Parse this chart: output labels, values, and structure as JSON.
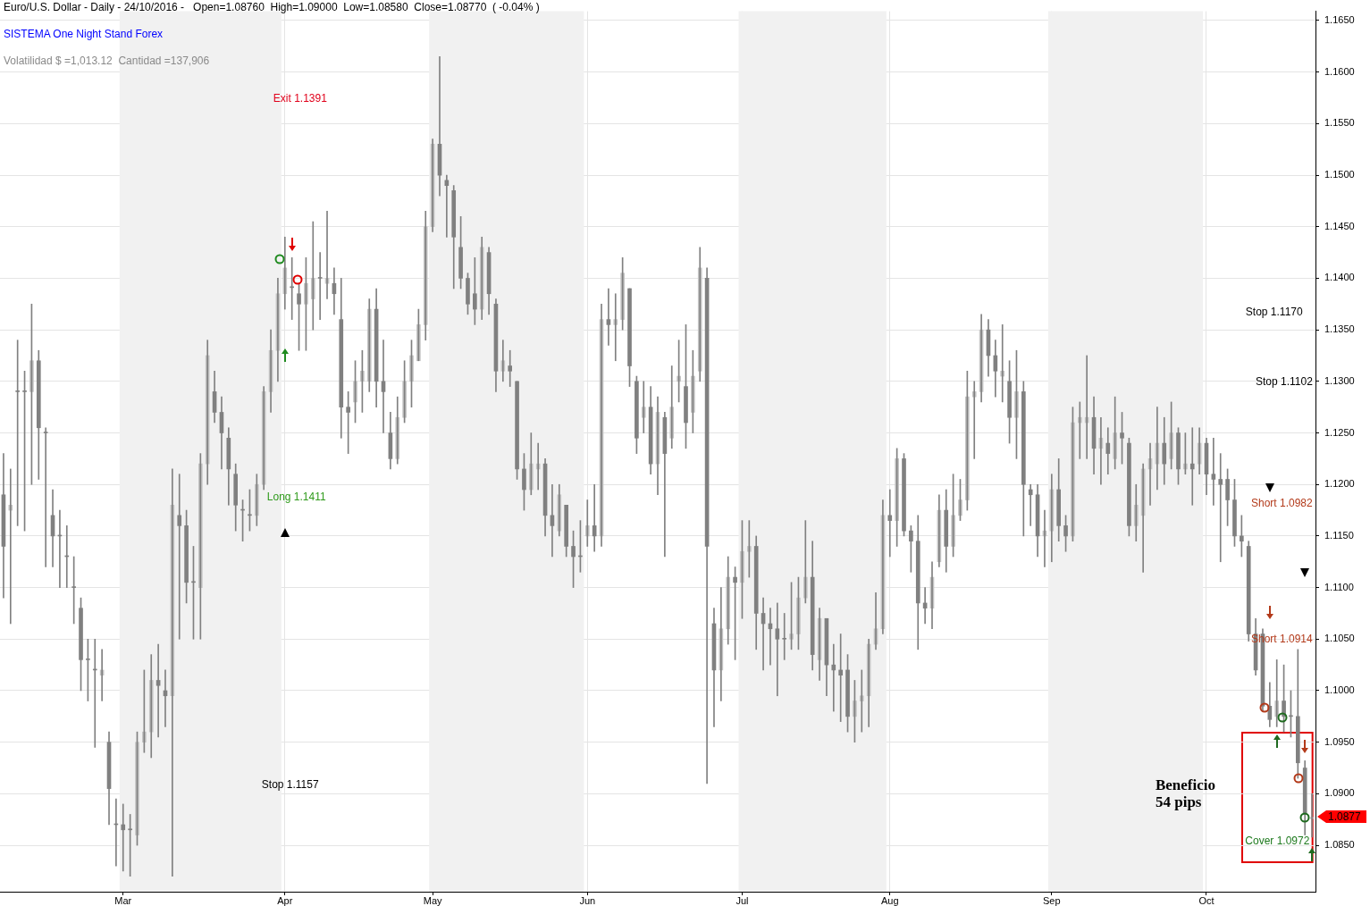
{
  "chart_data": {
    "type": "candlestick",
    "title": "Euro/U.S. Dollar - Daily - 24/10/2016 -   Open=1.08760  High=1.09000  Low=1.08580  Close=1.08770  ( -0.04% )",
    "subtitle": "SISTEMA One Night Stand Forex",
    "categories": [
      null,
      null,
      null,
      null,
      null,
      null,
      null,
      null,
      null,
      null,
      null,
      null,
      null,
      null,
      null,
      null,
      null,
      "Mar",
      null,
      null,
      null,
      null,
      null,
      null,
      null,
      null,
      null,
      null,
      null,
      null,
      null,
      null,
      null,
      null,
      null,
      null,
      null,
      null,
      null,
      null,
      "Apr",
      null,
      null,
      null,
      null,
      null,
      null,
      null,
      null,
      null,
      null,
      null,
      null,
      null,
      null,
      null,
      null,
      null,
      null,
      null,
      null,
      "May",
      null,
      null,
      null,
      null,
      null,
      null,
      null,
      null,
      null,
      null,
      null,
      null,
      null,
      null,
      null,
      null,
      null,
      null,
      null,
      null,
      null,
      "Jun",
      null,
      null,
      null,
      null,
      null,
      null,
      null,
      null,
      null,
      null,
      null,
      null,
      null,
      null,
      null,
      null,
      null,
      null,
      null,
      null,
      null,
      "Jul",
      null,
      null,
      null,
      null,
      null,
      null,
      null,
      null,
      null,
      null,
      null,
      null,
      null,
      null,
      null,
      null,
      null,
      null,
      null,
      null,
      "Aug",
      null,
      null,
      null,
      null,
      null,
      null,
      null,
      null,
      null,
      null,
      null,
      null,
      null,
      null,
      null,
      null,
      null,
      null,
      null,
      null,
      null,
      null,
      "Sep",
      null,
      null,
      null,
      null,
      null,
      null,
      null,
      null,
      null,
      null,
      null,
      null,
      null,
      null,
      null,
      null,
      null,
      null,
      null,
      null,
      null,
      "Oct",
      null,
      null,
      null,
      null,
      null,
      null,
      null,
      null,
      null,
      null,
      null,
      null,
      null,
      null,
      null
    ],
    "color": "#808080",
    "colors": [
      "#808080",
      "#c4c4c4",
      "#808080",
      "#808080",
      "#c4c4c4",
      "#808080",
      "#808080",
      "#808080",
      "#808080",
      "#808080",
      "#808080",
      "#808080",
      "#808080",
      "#808080",
      "#c4c4c4",
      "#808080",
      "#808080",
      "#808080",
      "#808080",
      "#c4c4c4",
      "#c4c4c4",
      "#c4c4c4",
      "#808080",
      "#808080",
      "#c4c4c4",
      "#808080",
      "#808080",
      "#808080",
      "#c4c4c4",
      "#c4c4c4",
      "#808080",
      "#808080",
      "#808080",
      "#808080",
      "#808080",
      "#808080",
      "#c4c4c4",
      "#c4c4c4",
      "#c4c4c4",
      "#c4c4c4",
      "#c4c4c4",
      "#808080",
      "#808080",
      "#c4c4c4",
      "#c4c4c4",
      "#808080",
      "#c4c4c4",
      "#808080",
      "#808080",
      "#808080",
      "#c4c4c4",
      "#c4c4c4",
      "#c4c4c4",
      "#808080",
      "#808080",
      "#808080",
      "#c4c4c4",
      "#c4c4c4",
      "#c4c4c4",
      "#c4c4c4",
      "#c4c4c4",
      "#c4c4c4",
      "#808080",
      "#808080",
      "#808080",
      "#808080",
      "#808080",
      "#808080",
      "#c4c4c4",
      "#808080",
      "#808080",
      "#c4c4c4",
      "#808080",
      "#808080",
      "#808080",
      "#c4c4c4",
      "#c4c4c4",
      "#808080",
      "#808080",
      "#c4c4c4",
      "#808080",
      "#808080",
      "#808080",
      "#c4c4c4",
      "#808080",
      "#c4c4c4",
      "#808080",
      "#c4c4c4",
      "#c4c4c4",
      "#808080",
      "#808080",
      "#c4c4c4",
      "#808080",
      "#c4c4c4",
      "#808080",
      "#c4c4c4",
      "#c4c4c4",
      "#808080",
      "#c4c4c4",
      "#c4c4c4",
      "#808080",
      "#808080",
      "#c4c4c4",
      "#c4c4c4",
      "#808080",
      "#c4c4c4",
      "#c4c4c4",
      "#808080",
      "#808080",
      "#808080",
      "#808080",
      "#808080",
      "#c4c4c4",
      "#c4c4c4",
      "#c4c4c4",
      "#808080",
      "#c4c4c4",
      "#808080",
      "#808080",
      "#808080",
      "#808080",
      "#c4c4c4",
      "#c4c4c4",
      "#c4c4c4",
      "#c4c4c4",
      "#c4c4c4",
      "#808080",
      "#c4c4c4",
      "#808080",
      "#808080",
      "#808080",
      "#808080",
      "#c4c4c4",
      "#c4c4c4",
      "#808080",
      "#c4c4c4",
      "#c4c4c4",
      "#c4c4c4",
      "#c4c4c4",
      "#c4c4c4",
      "#808080",
      "#808080",
      "#c4c4c4",
      "#808080",
      "#c4c4c4",
      "#808080",
      "#808080",
      "#808080",
      "#c4c4c4",
      "#c4c4c4",
      "#808080",
      "#808080",
      "#c4c4c4",
      "#c4c4c4",
      "#c4c4c4",
      "#808080",
      "#c4c4c4",
      "#808080",
      "#c4c4c4",
      "#808080",
      "#808080",
      "#c4c4c4",
      "#c4c4c4",
      "#c4c4c4",
      "#c4c4c4",
      "#808080",
      "#c4c4c4",
      "#808080",
      "#c4c4c4",
      "#808080",
      "#c4c4c4",
      "#808080",
      "#808080",
      "#808080",
      "#808080",
      "#808080",
      "#808080",
      "#808080",
      "#808080",
      "#808080",
      "#808080",
      "#c4c4c4",
      "#808080",
      "#808080",
      "#808080",
      "#808080",
      "#c4c4c4"
    ],
    "ohlc": [
      [
        1.119,
        1.123,
        1.109,
        1.114
      ],
      [
        1.1175,
        1.1215,
        1.1065,
        1.118
      ],
      [
        1.129,
        1.134,
        1.116,
        1.129
      ],
      [
        1.129,
        1.131,
        1.1155,
        1.129
      ],
      [
        1.129,
        1.1375,
        1.12,
        1.132
      ],
      [
        1.132,
        1.133,
        1.1205,
        1.1255
      ],
      [
        1.125,
        1.1255,
        1.112,
        1.125
      ],
      [
        1.117,
        1.1195,
        1.112,
        1.115
      ],
      [
        1.115,
        1.1175,
        1.11,
        1.115
      ],
      [
        1.113,
        1.116,
        1.11,
        1.113
      ],
      [
        1.11,
        1.113,
        1.1065,
        1.11
      ],
      [
        1.108,
        1.109,
        1.1,
        1.103
      ],
      [
        1.103,
        1.105,
        1.099,
        1.103
      ],
      [
        1.102,
        1.105,
        1.0945,
        1.102
      ],
      [
        1.1015,
        1.104,
        1.099,
        1.102
      ],
      [
        1.095,
        1.096,
        1.087,
        1.0905
      ],
      [
        1.087,
        1.0895,
        1.083,
        1.087
      ],
      [
        1.087,
        1.089,
        1.0825,
        1.0865
      ],
      [
        1.0865,
        1.088,
        1.082,
        1.0865
      ],
      [
        1.086,
        1.096,
        1.085,
        1.095
      ],
      [
        1.095,
        1.102,
        1.094,
        1.096
      ],
      [
        1.096,
        1.1035,
        1.0935,
        1.101
      ],
      [
        1.101,
        1.1045,
        1.0955,
        1.1005
      ],
      [
        1.1,
        1.102,
        1.0965,
        1.0995
      ],
      [
        1.0995,
        1.1215,
        1.082,
        1.118
      ],
      [
        1.117,
        1.121,
        1.105,
        1.116
      ],
      [
        1.116,
        1.1175,
        1.1085,
        1.1105
      ],
      [
        1.1105,
        1.114,
        1.105,
        1.1105
      ],
      [
        1.11,
        1.123,
        1.105,
        1.122
      ],
      [
        1.122,
        1.134,
        1.12,
        1.1325
      ],
      [
        1.129,
        1.131,
        1.126,
        1.127
      ],
      [
        1.127,
        1.1285,
        1.1215,
        1.125
      ],
      [
        1.1245,
        1.1255,
        1.118,
        1.1215
      ],
      [
        1.121,
        1.122,
        1.1155,
        1.118
      ],
      [
        1.1175,
        1.1185,
        1.1145,
        1.1175
      ],
      [
        1.117,
        1.1195,
        1.1155,
        1.117
      ],
      [
        1.117,
        1.121,
        1.116,
        1.12
      ],
      [
        1.12,
        1.1295,
        1.1195,
        1.129
      ],
      [
        1.129,
        1.135,
        1.127,
        1.133
      ],
      [
        1.133,
        1.14,
        1.13,
        1.1385
      ],
      [
        1.1385,
        1.144,
        1.137,
        1.141
      ],
      [
        1.1391,
        1.142,
        1.136,
        1.1391
      ],
      [
        1.1385,
        1.1395,
        1.133,
        1.1375
      ],
      [
        1.1375,
        1.142,
        1.133,
        1.1395
      ],
      [
        1.138,
        1.1455,
        1.135,
        1.14
      ],
      [
        1.14,
        1.1425,
        1.136,
        1.14
      ],
      [
        1.1395,
        1.1465,
        1.138,
        1.14
      ],
      [
        1.1395,
        1.141,
        1.1365,
        1.1385
      ],
      [
        1.136,
        1.14,
        1.1245,
        1.1275
      ],
      [
        1.1275,
        1.129,
        1.123,
        1.127
      ],
      [
        1.128,
        1.132,
        1.126,
        1.13
      ],
      [
        1.13,
        1.133,
        1.127,
        1.131
      ],
      [
        1.13,
        1.138,
        1.129,
        1.137
      ],
      [
        1.137,
        1.139,
        1.1275,
        1.13
      ],
      [
        1.13,
        1.134,
        1.125,
        1.129
      ],
      [
        1.125,
        1.127,
        1.1215,
        1.1225
      ],
      [
        1.1225,
        1.1285,
        1.122,
        1.1265
      ],
      [
        1.1265,
        1.132,
        1.126,
        1.13
      ],
      [
        1.13,
        1.134,
        1.1275,
        1.1325
      ],
      [
        1.132,
        1.137,
        1.132,
        1.1355
      ],
      [
        1.1355,
        1.1465,
        1.134,
        1.145
      ],
      [
        1.145,
        1.1535,
        1.1445,
        1.153
      ],
      [
        1.153,
        1.1615,
        1.148,
        1.15
      ],
      [
        1.1495,
        1.15,
        1.144,
        1.149
      ],
      [
        1.1485,
        1.149,
        1.139,
        1.144
      ],
      [
        1.143,
        1.146,
        1.139,
        1.14
      ],
      [
        1.14,
        1.1405,
        1.1365,
        1.1375
      ],
      [
        1.1385,
        1.142,
        1.1355,
        1.137
      ],
      [
        1.137,
        1.144,
        1.136,
        1.143
      ],
      [
        1.1425,
        1.143,
        1.1365,
        1.1385
      ],
      [
        1.1375,
        1.138,
        1.129,
        1.131
      ],
      [
        1.131,
        1.134,
        1.13,
        1.132
      ],
      [
        1.1315,
        1.133,
        1.1295,
        1.131
      ],
      [
        1.13,
        1.13,
        1.1205,
        1.1215
      ],
      [
        1.1215,
        1.123,
        1.1175,
        1.1195
      ],
      [
        1.1195,
        1.125,
        1.119,
        1.122
      ],
      [
        1.1215,
        1.124,
        1.1195,
        1.122
      ],
      [
        1.122,
        1.1225,
        1.115,
        1.117
      ],
      [
        1.117,
        1.12,
        1.113,
        1.116
      ],
      [
        1.1155,
        1.12,
        1.115,
        1.119
      ],
      [
        1.118,
        1.118,
        1.113,
        1.114
      ],
      [
        1.114,
        1.1155,
        1.11,
        1.113
      ],
      [
        1.113,
        1.1165,
        1.1115,
        1.113
      ],
      [
        1.115,
        1.1185,
        1.114,
        1.116
      ],
      [
        1.116,
        1.12,
        1.1135,
        1.115
      ],
      [
        1.115,
        1.1375,
        1.114,
        1.136
      ],
      [
        1.136,
        1.139,
        1.1335,
        1.1355
      ],
      [
        1.1355,
        1.1385,
        1.132,
        1.136
      ],
      [
        1.136,
        1.142,
        1.135,
        1.1405
      ],
      [
        1.139,
        1.139,
        1.1295,
        1.1315
      ],
      [
        1.13,
        1.1305,
        1.123,
        1.1245
      ],
      [
        1.1265,
        1.13,
        1.125,
        1.1275
      ],
      [
        1.1275,
        1.1295,
        1.121,
        1.122
      ],
      [
        1.122,
        1.1285,
        1.119,
        1.127
      ],
      [
        1.1265,
        1.127,
        1.113,
        1.123
      ],
      [
        1.1245,
        1.1315,
        1.1235,
        1.1275
      ],
      [
        1.13,
        1.134,
        1.128,
        1.1305
      ],
      [
        1.1295,
        1.1355,
        1.1235,
        1.126
      ],
      [
        1.127,
        1.133,
        1.125,
        1.1305
      ],
      [
        1.131,
        1.143,
        1.13,
        1.141
      ],
      [
        1.14,
        1.141,
        1.091,
        1.114
      ],
      [
        1.1065,
        1.108,
        1.0965,
        1.102
      ],
      [
        1.102,
        1.11,
        1.099,
        1.106
      ],
      [
        1.106,
        1.113,
        1.1045,
        1.111
      ],
      [
        1.111,
        1.112,
        1.103,
        1.1105
      ],
      [
        1.1105,
        1.1165,
        1.107,
        1.1135
      ],
      [
        1.1135,
        1.1165,
        1.111,
        1.114
      ],
      [
        1.114,
        1.115,
        1.104,
        1.1075
      ],
      [
        1.1075,
        1.109,
        1.102,
        1.1065
      ],
      [
        1.1065,
        1.108,
        1.1025,
        1.106
      ],
      [
        1.106,
        1.1085,
        1.0995,
        1.105
      ],
      [
        1.105,
        1.1075,
        1.103,
        1.105
      ],
      [
        1.105,
        1.1105,
        1.104,
        1.1055
      ],
      [
        1.1055,
        1.111,
        1.104,
        1.109
      ],
      [
        1.109,
        1.1165,
        1.1085,
        1.111
      ],
      [
        1.111,
        1.1145,
        1.102,
        1.1035
      ],
      [
        1.103,
        1.108,
        1.101,
        1.107
      ],
      [
        1.107,
        1.107,
        1.0995,
        1.1025
      ],
      [
        1.1025,
        1.1045,
        1.098,
        1.102
      ],
      [
        1.102,
        1.1055,
        1.097,
        1.1015
      ],
      [
        1.102,
        1.1035,
        1.096,
        1.0975
      ],
      [
        1.0975,
        1.101,
        1.095,
        1.099
      ],
      [
        1.099,
        1.102,
        1.096,
        1.0995
      ],
      [
        1.0995,
        1.105,
        1.0965,
        1.1045
      ],
      [
        1.1045,
        1.1095,
        1.104,
        1.106
      ],
      [
        1.106,
        1.1185,
        1.1055,
        1.117
      ],
      [
        1.117,
        1.1195,
        1.113,
        1.1165
      ],
      [
        1.1165,
        1.1235,
        1.114,
        1.1225
      ],
      [
        1.1225,
        1.123,
        1.115,
        1.1155
      ],
      [
        1.1155,
        1.116,
        1.1115,
        1.1145
      ],
      [
        1.1145,
        1.117,
        1.104,
        1.1085
      ],
      [
        1.1085,
        1.11,
        1.1065,
        1.108
      ],
      [
        1.108,
        1.1125,
        1.106,
        1.111
      ],
      [
        1.1125,
        1.119,
        1.112,
        1.1175
      ],
      [
        1.1175,
        1.1195,
        1.1115,
        1.114
      ],
      [
        1.114,
        1.121,
        1.113,
        1.117
      ],
      [
        1.117,
        1.1205,
        1.1165,
        1.1185
      ],
      [
        1.1185,
        1.131,
        1.1175,
        1.1285
      ],
      [
        1.1285,
        1.13,
        1.1225,
        1.129
      ],
      [
        1.129,
        1.1365,
        1.128,
        1.135
      ],
      [
        1.135,
        1.136,
        1.1305,
        1.1325
      ],
      [
        1.1325,
        1.134,
        1.1285,
        1.131
      ],
      [
        1.1305,
        1.1355,
        1.128,
        1.131
      ],
      [
        1.13,
        1.132,
        1.124,
        1.1265
      ],
      [
        1.1265,
        1.133,
        1.1225,
        1.129
      ],
      [
        1.129,
        1.13,
        1.115,
        1.12
      ],
      [
        1.1195,
        1.12,
        1.116,
        1.119
      ],
      [
        1.119,
        1.12,
        1.113,
        1.115
      ],
      [
        1.115,
        1.1175,
        1.112,
        1.1155
      ],
      [
        1.1155,
        1.121,
        1.1125,
        1.1195
      ],
      [
        1.1195,
        1.1225,
        1.1145,
        1.116
      ],
      [
        1.116,
        1.117,
        1.1135,
        1.115
      ],
      [
        1.115,
        1.1275,
        1.1145,
        1.126
      ],
      [
        1.126,
        1.128,
        1.1225,
        1.1265
      ],
      [
        1.126,
        1.1325,
        1.1225,
        1.1265
      ],
      [
        1.1265,
        1.1285,
        1.121,
        1.1235
      ],
      [
        1.1235,
        1.1265,
        1.12,
        1.1245
      ],
      [
        1.124,
        1.1255,
        1.121,
        1.123
      ],
      [
        1.1225,
        1.1285,
        1.1215,
        1.125
      ],
      [
        1.125,
        1.127,
        1.122,
        1.1245
      ],
      [
        1.124,
        1.1245,
        1.115,
        1.116
      ],
      [
        1.116,
        1.12,
        1.1145,
        1.118
      ],
      [
        1.117,
        1.122,
        1.1115,
        1.1215
      ],
      [
        1.1215,
        1.124,
        1.118,
        1.1225
      ],
      [
        1.122,
        1.1275,
        1.1195,
        1.124
      ],
      [
        1.124,
        1.1265,
        1.12,
        1.122
      ],
      [
        1.1225,
        1.128,
        1.1215,
        1.125
      ],
      [
        1.125,
        1.1255,
        1.12,
        1.1215
      ],
      [
        1.1215,
        1.125,
        1.121,
        1.122
      ],
      [
        1.122,
        1.1255,
        1.118,
        1.1215
      ],
      [
        1.122,
        1.1255,
        1.121,
        1.124
      ],
      [
        1.124,
        1.1245,
        1.119,
        1.121
      ],
      [
        1.121,
        1.1245,
        1.118,
        1.1205
      ],
      [
        1.1205,
        1.123,
        1.1125,
        1.12
      ],
      [
        1.1205,
        1.1215,
        1.116,
        1.1185
      ],
      [
        1.1185,
        1.1205,
        1.114,
        1.115
      ],
      [
        1.115,
        1.117,
        1.113,
        1.1145
      ],
      [
        1.114,
        1.1145,
        1.1048,
        1.1055
      ],
      [
        1.1055,
        1.107,
        1.1015,
        1.102
      ],
      [
        1.1055,
        1.106,
        1.098,
        1.0985
      ],
      [
        1.0985,
        1.1008,
        1.0965,
        1.0972
      ],
      [
        1.0975,
        1.103,
        1.0965,
        1.099
      ],
      [
        1.099,
        1.1025,
        1.096,
        1.0975
      ],
      [
        1.0975,
        1.1,
        1.0955,
        1.0975
      ],
      [
        1.0975,
        1.104,
        1.0915,
        1.093
      ],
      [
        1.0925,
        1.0932,
        1.086,
        1.088
      ],
      [
        1.0876,
        1.09,
        1.0858,
        1.0877
      ]
    ],
    "ylim": [
      1.0805,
      1.1659
    ],
    "yticks": [
      {
        "value": 1.085,
        "label": "1.0850"
      },
      {
        "value": 1.09,
        "label": "1.0900"
      },
      {
        "value": 1.095,
        "label": "1.0950"
      },
      {
        "value": 1.1,
        "label": "1.1000"
      },
      {
        "value": 1.105,
        "label": "1.1050"
      },
      {
        "value": 1.11,
        "label": "1.1100"
      },
      {
        "value": 1.115,
        "label": "1.1150"
      },
      {
        "value": 1.12,
        "label": "1.1200"
      },
      {
        "value": 1.125,
        "label": "1.1250"
      },
      {
        "value": 1.13,
        "label": "1.1300"
      },
      {
        "value": 1.135,
        "label": "1.1350"
      },
      {
        "value": 1.14,
        "label": "1.1400"
      },
      {
        "value": 1.145,
        "label": "1.1450"
      },
      {
        "value": 1.15,
        "label": "1.1500"
      },
      {
        "value": 1.155,
        "label": "1.1550"
      },
      {
        "value": 1.16,
        "label": "1.1600"
      },
      {
        "value": 1.165,
        "label": "1.1650"
      }
    ],
    "grid": true,
    "bands": [
      {
        "axis": "x",
        "from": "Mar",
        "to": "Apr",
        "color": "#f1f1f1"
      },
      {
        "axis": "x",
        "from": "May",
        "to": "Jun",
        "color": "#f1f1f1"
      },
      {
        "axis": "x",
        "from": "Jul",
        "to": "Aug",
        "color": "#f1f1f1"
      },
      {
        "axis": "x",
        "from": "Sep",
        "to": "Oct",
        "color": "#f1f1f1"
      }
    ],
    "annotations": [
      "Volatilidad $ =1,013.12  Cantidad =137,906",
      "Exit 1.1391",
      "Long 1.1411",
      "Stop 1.1157",
      "Stop 1.1170",
      "Stop 1.1102",
      "Short 1.0982",
      "Short 1.0914",
      "Cover 1.0972",
      "Beneficio\n54 pips",
      "1.0877"
    ]
  }
}
